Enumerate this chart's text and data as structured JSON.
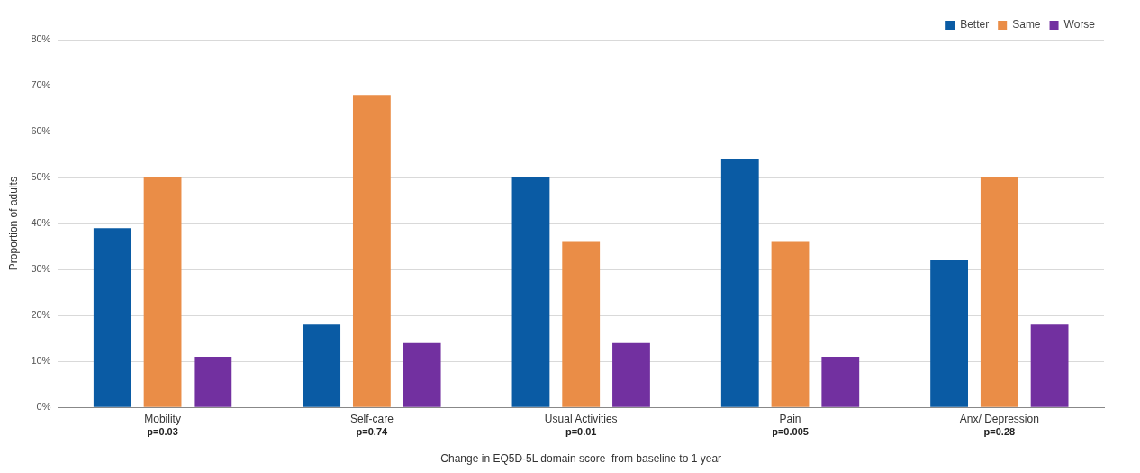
{
  "chart_data": {
    "type": "bar",
    "ylabel": "Proportion of adults",
    "xlabel": "Change in EQ5D-5L domain score  from baseline to 1 year",
    "categories": [
      "Mobility",
      "Self-care",
      "Usual Activities",
      "Pain",
      "Anx/ Depression"
    ],
    "series": [
      {
        "name": "Better",
        "color": "#0a5ba4",
        "values": [
          39,
          18,
          50,
          54,
          32
        ]
      },
      {
        "name": "Same",
        "color": "#ea8d47",
        "values": [
          50,
          68,
          36,
          36,
          50
        ]
      },
      {
        "name": "Worse",
        "color": "#7230a0",
        "values": [
          11,
          14,
          14,
          11,
          18
        ]
      }
    ],
    "ylim": [
      0,
      80
    ],
    "yticks": [
      {
        "value": 0,
        "label": "0%"
      },
      {
        "value": 10,
        "label": "10%"
      },
      {
        "value": 20,
        "label": "20%"
      },
      {
        "value": 30,
        "label": "30%"
      },
      {
        "value": 40,
        "label": "40%"
      },
      {
        "value": 50,
        "label": "50%"
      },
      {
        "value": 60,
        "label": "60%"
      },
      {
        "value": 70,
        "label": "70%"
      },
      {
        "value": 80,
        "label": "80%"
      }
    ],
    "grid": "y",
    "legend": "top right",
    "annotations": [
      "p=0.03",
      "p=0.74",
      "p=0.01",
      "p=0.005",
      "p=0.28"
    ]
  }
}
